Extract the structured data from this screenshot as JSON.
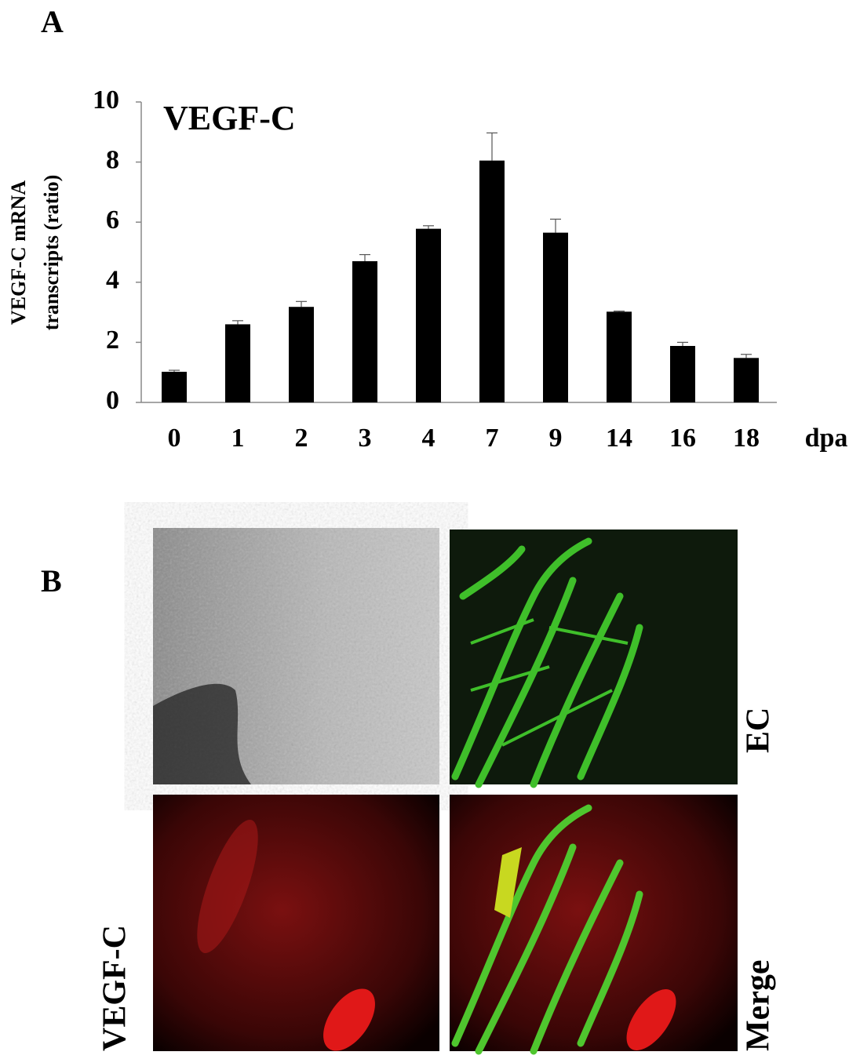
{
  "panel_labels": [
    "A",
    "B"
  ],
  "chart_data": {
    "type": "bar",
    "title": "VEGF-C",
    "y_label": [
      "VEGF-C  mRNA",
      "transcripts (ratio)"
    ],
    "x_label": "dpa",
    "categories": [
      "0",
      "1",
      "2",
      "3",
      "4",
      "7",
      "9",
      "14",
      "16",
      "18"
    ],
    "values": [
      1.02,
      2.6,
      3.18,
      4.7,
      5.78,
      8.05,
      5.65,
      3.02,
      1.88,
      1.48
    ],
    "errors": [
      0.05,
      0.12,
      0.18,
      0.22,
      0.1,
      0.92,
      0.45,
      0.02,
      0.12,
      0.12
    ],
    "color": "#000000",
    "error_color": "#555555",
    "ylim": [
      0,
      10
    ],
    "yticks": [
      0,
      2,
      4,
      6,
      8,
      10
    ]
  },
  "images": {
    "labels": [
      "EC",
      "VEGF-C",
      "Merge"
    ]
  }
}
